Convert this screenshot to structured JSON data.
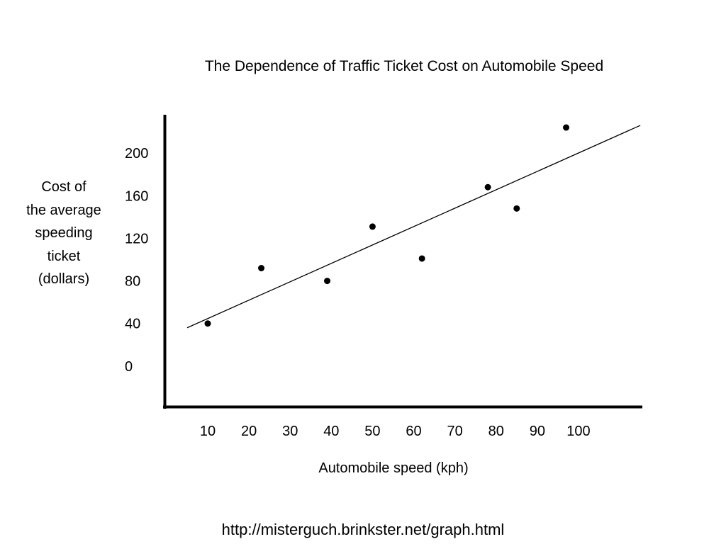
{
  "chart_data": {
    "type": "scatter",
    "title": "The Dependence of Traffic Ticket Cost on Automobile Speed",
    "xlabel": "Automobile speed (kph)",
    "ylabel": "Cost of\nthe average\nspeeding\nticket\n(dollars)",
    "xticks": [
      10,
      20,
      30,
      40,
      50,
      60,
      70,
      80,
      90,
      100
    ],
    "yticks": [
      0,
      40,
      80,
      120,
      160,
      200
    ],
    "xlim": [
      -0.5,
      115.5
    ],
    "ylim": [
      -38,
      236
    ],
    "grid": false,
    "points": [
      {
        "x": 10,
        "y": 40
      },
      {
        "x": 23,
        "y": 92
      },
      {
        "x": 39,
        "y": 80
      },
      {
        "x": 50,
        "y": 131
      },
      {
        "x": 62,
        "y": 101
      },
      {
        "x": 78,
        "y": 168
      },
      {
        "x": 85,
        "y": 148
      },
      {
        "x": 97,
        "y": 224
      }
    ],
    "trendline": {
      "x": [
        5,
        115
      ],
      "y": [
        36,
        226
      ]
    }
  },
  "footer": {
    "source_url": "http://misterguch.brinkster.net/graph.html"
  }
}
